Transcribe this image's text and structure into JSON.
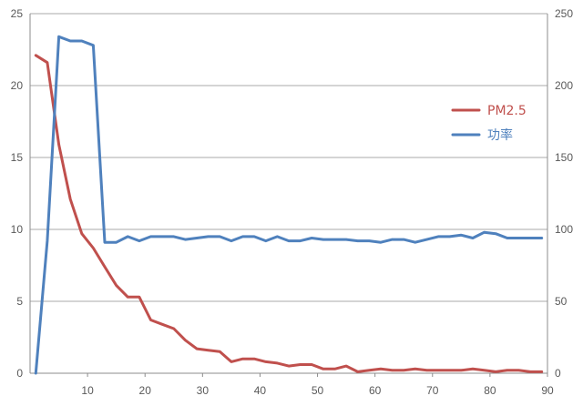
{
  "chart_data": {
    "type": "line",
    "title": "",
    "xlabel": "",
    "ylabel": "",
    "x_ticks": [
      "10",
      "20",
      "30",
      "40",
      "50",
      "60",
      "70",
      "80",
      "90"
    ],
    "y_left_ticks": [
      "0",
      "5",
      "10",
      "15",
      "20",
      "25"
    ],
    "y_right_ticks": [
      "0",
      "50",
      "100",
      "150",
      "200",
      "250"
    ],
    "xlim": [
      0,
      90
    ],
    "ylim_left": [
      0,
      25
    ],
    "ylim_right": [
      0,
      250
    ],
    "grid": "horizontal",
    "legend_position": "right",
    "series": [
      {
        "name": "PM2.5",
        "axis": "left",
        "color": "#c0504d",
        "points": [
          [
            1,
            22.1
          ],
          [
            3,
            21.6
          ],
          [
            5,
            15.9
          ],
          [
            7,
            12.1
          ],
          [
            9,
            9.7
          ],
          [
            11,
            8.7
          ],
          [
            13,
            7.4
          ],
          [
            15,
            6.1
          ],
          [
            17,
            5.3
          ],
          [
            19,
            5.3
          ],
          [
            21,
            3.7
          ],
          [
            23,
            3.4
          ],
          [
            25,
            3.1
          ],
          [
            27,
            2.3
          ],
          [
            29,
            1.7
          ],
          [
            31,
            1.6
          ],
          [
            33,
            1.5
          ],
          [
            35,
            0.8
          ],
          [
            37,
            1.0
          ],
          [
            39,
            1.0
          ],
          [
            41,
            0.8
          ],
          [
            43,
            0.7
          ],
          [
            45,
            0.5
          ],
          [
            47,
            0.6
          ],
          [
            49,
            0.6
          ],
          [
            51,
            0.3
          ],
          [
            53,
            0.3
          ],
          [
            55,
            0.5
          ],
          [
            57,
            0.1
          ],
          [
            59,
            0.2
          ],
          [
            61,
            0.3
          ],
          [
            63,
            0.2
          ],
          [
            65,
            0.2
          ],
          [
            67,
            0.3
          ],
          [
            69,
            0.2
          ],
          [
            71,
            0.2
          ],
          [
            73,
            0.2
          ],
          [
            75,
            0.2
          ],
          [
            77,
            0.3
          ],
          [
            79,
            0.2
          ],
          [
            81,
            0.1
          ],
          [
            83,
            0.2
          ],
          [
            85,
            0.2
          ],
          [
            87,
            0.1
          ],
          [
            89,
            0.1
          ]
        ]
      },
      {
        "name": "功率",
        "axis": "right",
        "color": "#4f81bd",
        "points": [
          [
            1,
            0
          ],
          [
            3,
            92
          ],
          [
            5,
            234
          ],
          [
            7,
            231
          ],
          [
            9,
            231
          ],
          [
            11,
            228
          ],
          [
            13,
            91
          ],
          [
            15,
            91
          ],
          [
            17,
            95
          ],
          [
            19,
            92
          ],
          [
            21,
            95
          ],
          [
            23,
            95
          ],
          [
            25,
            95
          ],
          [
            27,
            93
          ],
          [
            29,
            94
          ],
          [
            31,
            95
          ],
          [
            33,
            95
          ],
          [
            35,
            92
          ],
          [
            37,
            95
          ],
          [
            39,
            95
          ],
          [
            41,
            92
          ],
          [
            43,
            95
          ],
          [
            45,
            92
          ],
          [
            47,
            92
          ],
          [
            49,
            94
          ],
          [
            51,
            93
          ],
          [
            53,
            93
          ],
          [
            55,
            93
          ],
          [
            57,
            92
          ],
          [
            59,
            92
          ],
          [
            61,
            91
          ],
          [
            63,
            93
          ],
          [
            65,
            93
          ],
          [
            67,
            91
          ],
          [
            69,
            93
          ],
          [
            71,
            95
          ],
          [
            73,
            95
          ],
          [
            75,
            96
          ],
          [
            77,
            94
          ],
          [
            79,
            98
          ],
          [
            81,
            97
          ],
          [
            83,
            94
          ],
          [
            85,
            94
          ],
          [
            87,
            94
          ],
          [
            89,
            94
          ]
        ]
      }
    ]
  }
}
